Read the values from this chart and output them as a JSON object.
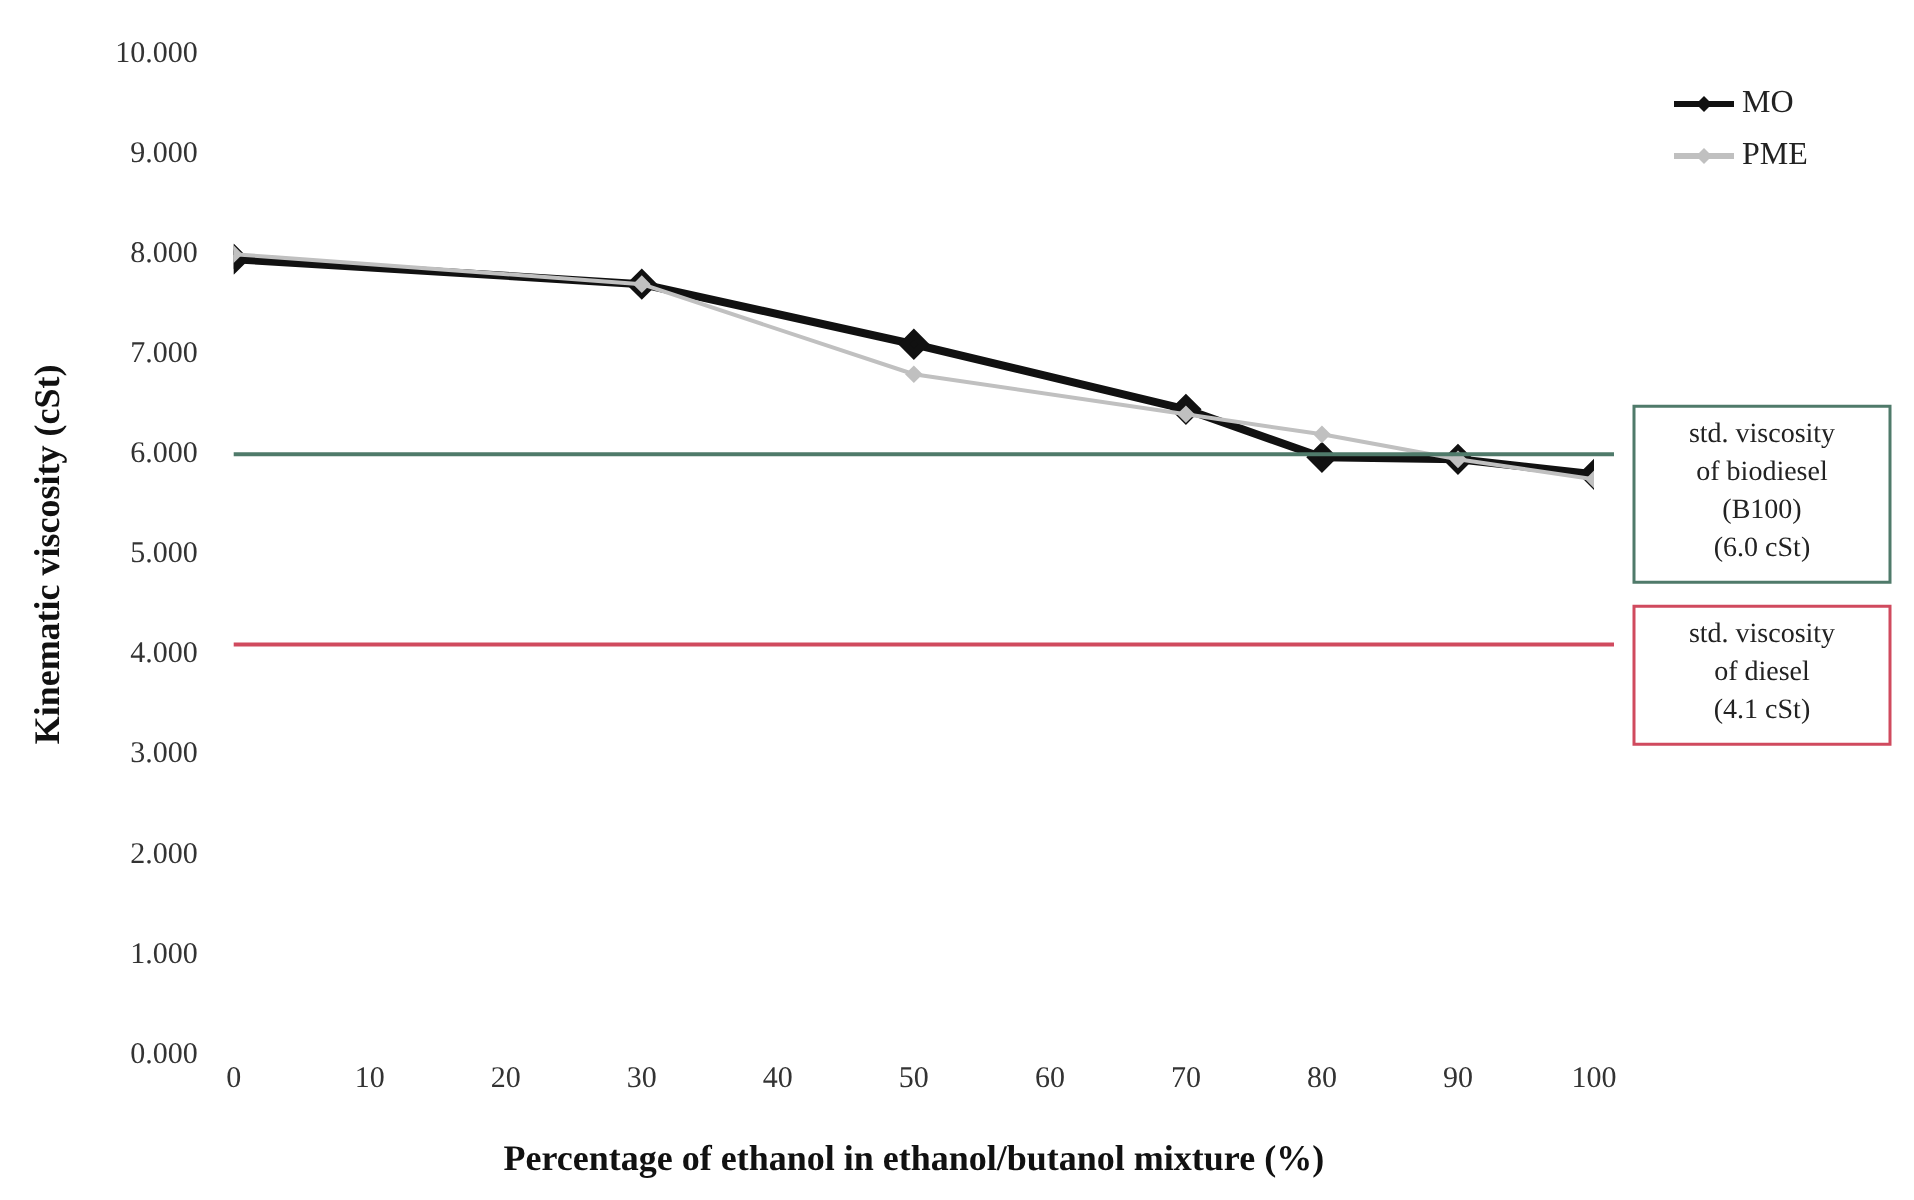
{
  "chart_data": {
    "type": "line",
    "xlabel": "Percentage of ethanol in ethanol/butanol mixture (%)",
    "ylabel": "Kinematic viscosity (cSt)",
    "x": [
      0,
      30,
      50,
      70,
      80,
      90,
      100
    ],
    "series": [
      {
        "name": "MO",
        "color": "#111111",
        "values": [
          7.95,
          7.7,
          7.1,
          6.45,
          5.97,
          5.95,
          5.8
        ]
      },
      {
        "name": "PME",
        "color": "#c0c0c0",
        "values": [
          8.0,
          7.7,
          6.8,
          6.4,
          6.2,
          5.95,
          5.75
        ]
      }
    ],
    "xlim": [
      0,
      100
    ],
    "xticks": [
      0,
      10,
      20,
      30,
      40,
      50,
      60,
      70,
      80,
      90,
      100
    ],
    "ylim": [
      0,
      10
    ],
    "yticks": [
      {
        "value": 0,
        "label": "0.000"
      },
      {
        "value": 1,
        "label": "1.000"
      },
      {
        "value": 2,
        "label": "2.000"
      },
      {
        "value": 3,
        "label": "3.000"
      },
      {
        "value": 4,
        "label": "4.000"
      },
      {
        "value": 5,
        "label": "5.000"
      },
      {
        "value": 6,
        "label": "6.000"
      },
      {
        "value": 7,
        "label": "7.000"
      },
      {
        "value": 8,
        "label": "8.000"
      },
      {
        "value": 9,
        "label": "9.000"
      },
      {
        "value": 10,
        "label": "10.000"
      }
    ],
    "ref_lines": [
      {
        "axis": "y",
        "value": 6.0,
        "label": "std. viscosity\nof biodiesel\n(B100)\n(6.0 cSt)",
        "color": "#4f7a6a"
      },
      {
        "axis": "y",
        "value": 4.1,
        "label": "std. viscosity\nof diesel\n(4.1 cSt)",
        "color": "#d04a5e"
      }
    ],
    "grid": false,
    "legend": "top right",
    "marker": "diamond",
    "line_style": "solid"
  }
}
